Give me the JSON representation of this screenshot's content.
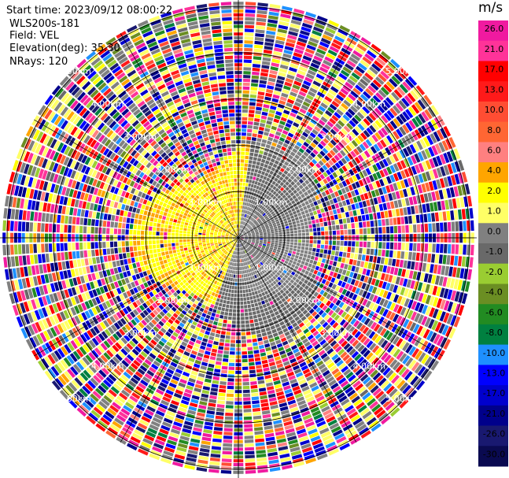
{
  "header": {
    "start_time": "Start time: 2023/09/12 08:00:22",
    "instrument": "WLS200s-181",
    "field": "Field: VEL",
    "elevation": "Elevation(deg): 35.30",
    "nrays": "NRays: 120"
  },
  "colorbar": {
    "unit": "m/s",
    "ticks": [
      "26.0",
      "21.0",
      "17.0",
      "13.0",
      "10.0",
      "8.0",
      "6.0",
      "4.0",
      "2.0",
      "1.0",
      "0.0",
      "-1.0",
      "-2.0",
      "-4.0",
      "-6.0",
      "-8.0",
      "-10.0",
      "-13.0",
      "-17.0",
      "-21.0",
      "-26.0",
      "-30.0"
    ],
    "colors": [
      "#f01aa0",
      "#ff3399",
      "#ff0000",
      "#ff1a1a",
      "#ff4d33",
      "#ff6633",
      "#ff8080",
      "#ffa500",
      "#ffff00",
      "#ffff66",
      "#808080",
      "#696969",
      "#9acd32",
      "#6b8e23",
      "#228b22",
      "#008040",
      "#1e90ff",
      "#0000ff",
      "#0000cd",
      "#00008b",
      "#191970",
      "#0a0a50"
    ]
  },
  "chart_data": {
    "type": "heatmap",
    "subtype": "polar PPI velocity",
    "field": "VEL",
    "unit": "m/s",
    "nrays": 120,
    "range_rings_km": [
      1.0,
      2.0,
      3.0,
      4.0,
      5.0
    ],
    "ring_labels": [
      "1.00km",
      "2.00km",
      "3.00km",
      "4.00km",
      "5.00km"
    ],
    "max_range_km": 5.1,
    "inner_pattern": {
      "description_values": "near-field velocities mostly -2 to 2 m/s",
      "positive_sector_deg": [
        200,
        360
      ],
      "negative_sector_deg": [
        0,
        200
      ]
    },
    "outer_pattern": "noisy / random velocities beyond ~2.3 km"
  }
}
